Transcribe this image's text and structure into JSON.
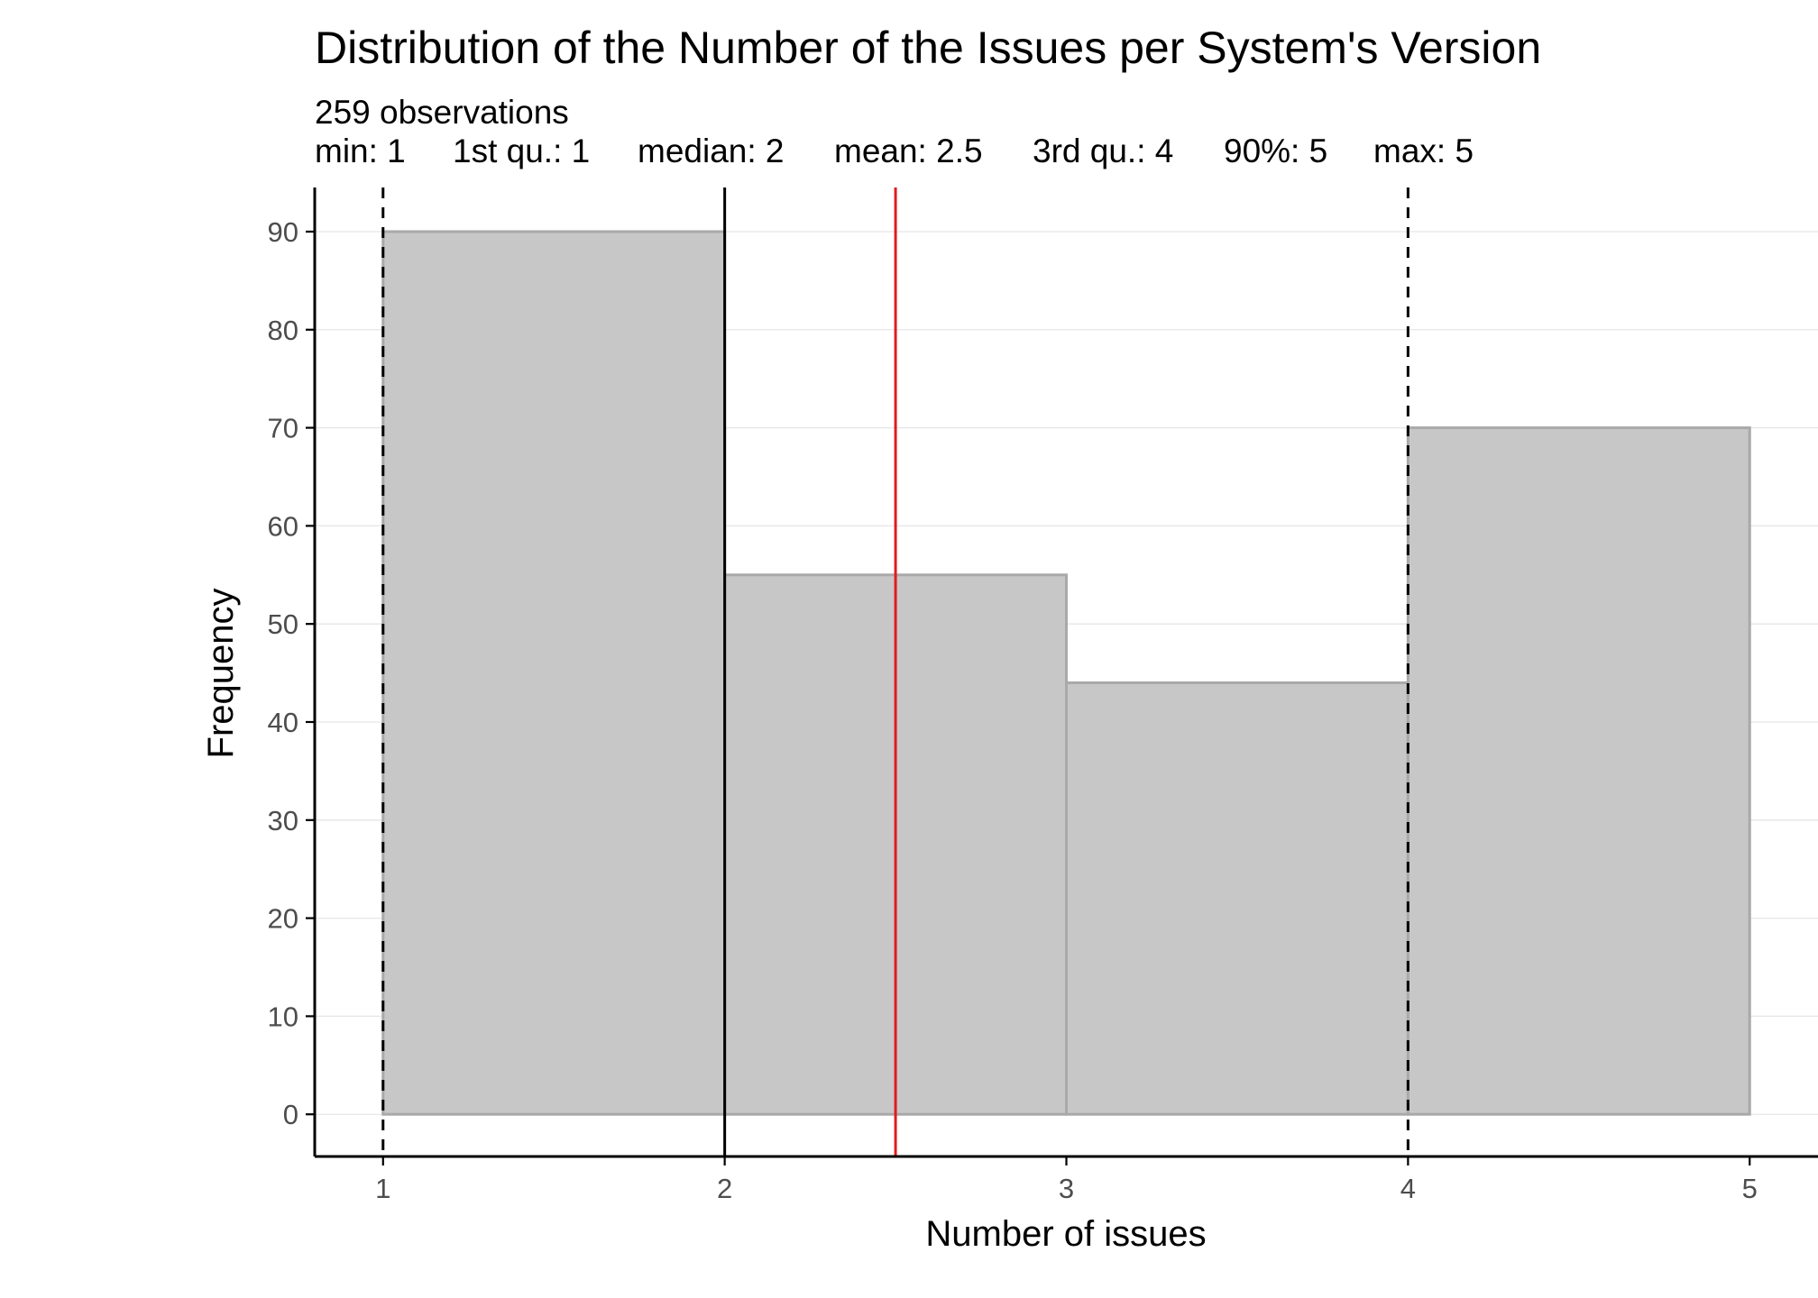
{
  "chart_data": {
    "type": "bar",
    "title": "Distribution of the Number of the Issues per System's Version",
    "subtitle_line1": "259 observations",
    "stats": [
      {
        "label": "min: 1"
      },
      {
        "label": "1st qu.: 1"
      },
      {
        "label": "median: 2"
      },
      {
        "label": "mean: 2.5"
      },
      {
        "label": "3rd qu.: 4"
      },
      {
        "label": "90%: 5"
      },
      {
        "label": "max: 5"
      }
    ],
    "xlabel": "Number of issues",
    "ylabel": "Frequency",
    "bins": [
      {
        "x0": 1,
        "x1": 2,
        "count": 90
      },
      {
        "x0": 2,
        "x1": 3,
        "count": 55
      },
      {
        "x0": 3,
        "x1": 4,
        "count": 44
      },
      {
        "x0": 4,
        "x1": 5,
        "count": 70
      }
    ],
    "xticks": [
      "1",
      "2",
      "3",
      "4",
      "5"
    ],
    "yticks": [
      "0",
      "10",
      "20",
      "30",
      "40",
      "50",
      "60",
      "70",
      "80",
      "90"
    ],
    "xlim": [
      0.8,
      5.2
    ],
    "ylim": [
      -4.3,
      94.5
    ],
    "grid": true,
    "reference_lines": [
      {
        "name": "quartile-1",
        "value": 1,
        "style": "dashed",
        "color": "#000000"
      },
      {
        "name": "median",
        "value": 2,
        "style": "solid",
        "color": "#000000"
      },
      {
        "name": "mean",
        "value": 2.5,
        "style": "solid",
        "color": "#e31a1c"
      },
      {
        "name": "quartile-3",
        "value": 4,
        "style": "dashed",
        "color": "#000000"
      }
    ],
    "colors": {
      "bar_fill": "#c7c7c7",
      "bar_stroke": "#a9a9a9",
      "grid": "#e6e6e6",
      "axis": "#000000",
      "mean": "#e31a1c"
    }
  }
}
